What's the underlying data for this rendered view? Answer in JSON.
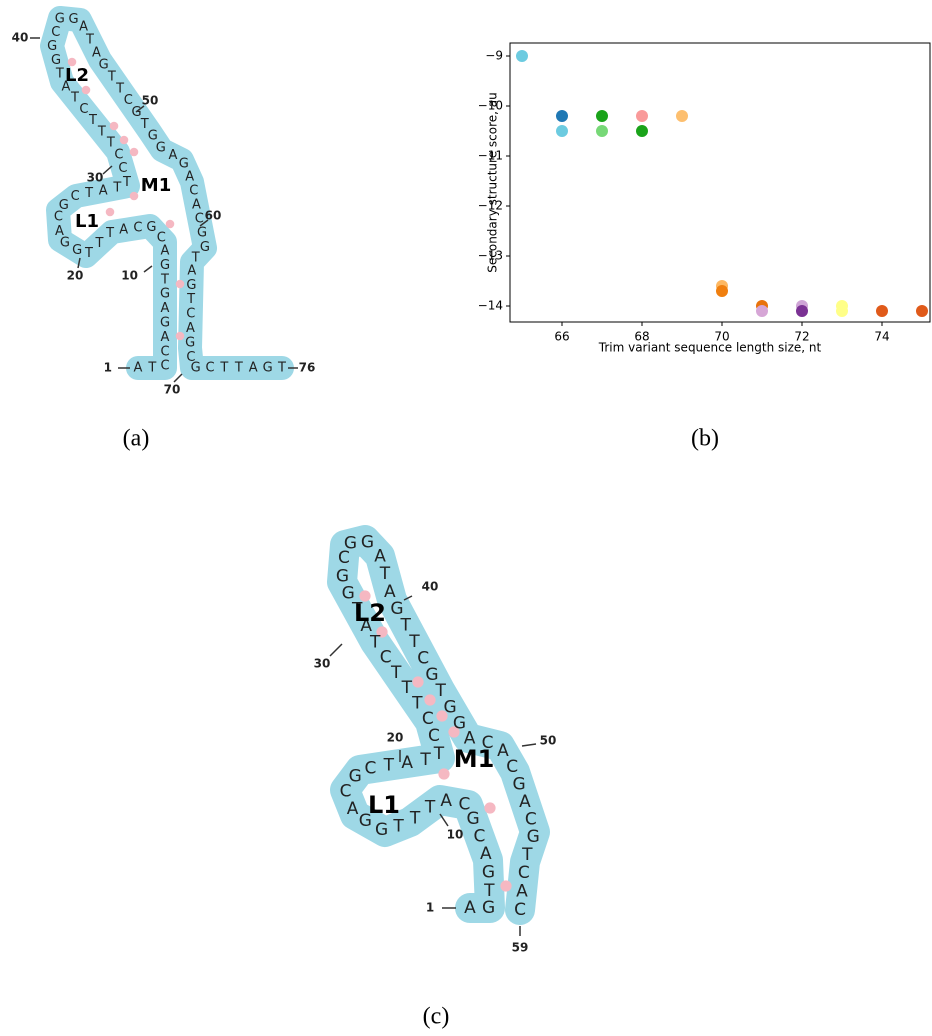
{
  "chart_data": {
    "type": "scatter",
    "x": [
      65,
      66,
      66,
      67,
      67,
      68,
      68,
      69,
      70,
      70,
      71,
      71,
      72,
      72,
      73,
      73,
      74,
      75
    ],
    "values": [
      -9,
      -10.2,
      -10.5,
      -10.2,
      -10.5,
      -10.2,
      -10.5,
      -10.2,
      -13.6,
      -13.7,
      -14,
      -14.1,
      -14,
      -14.1,
      -14,
      -14.1,
      -14.1,
      -14.1
    ],
    "colors": [
      "#6ccbe0",
      "#1f78b4",
      "#6ccbe0",
      "#1aa31a",
      "#77d877",
      "#f99a9a",
      "#1aa31a",
      "#fdbf6f",
      "#fdb863",
      "#f07f0f",
      "#e8730c",
      "#d6a6d6",
      "#cfa5d6",
      "#7b3294",
      "#ffff88",
      "#ffff88",
      "#e05a1a",
      "#e05a1a"
    ],
    "xlabel": "Trim variant sequence length size, nt",
    "ylabel": "Secondary structure score, au",
    "xlim": [
      64.7,
      75.2
    ],
    "ylim": [
      -14.32,
      -8.74
    ],
    "xticks": [
      66,
      68,
      70,
      72,
      74
    ],
    "yticks": [
      {
        "value": -14,
        "label": "−14"
      },
      {
        "value": -13,
        "label": "−13"
      },
      {
        "value": -12,
        "label": "−12"
      },
      {
        "value": -11,
        "label": "−11"
      },
      {
        "value": -10,
        "label": "−10"
      },
      {
        "value": -9,
        "label": "−9"
      }
    ]
  },
  "diagrams": [
    {
      "sequence": "ATCCAGAGTGACGCATTTGGACGCTATTCCTTTCTATGGCGGATAGTTCGTGGAGACACGGTAGTCAGCGCTTAGT",
      "position_labels": [
        "1",
        "10",
        "20",
        "30",
        "40",
        "50",
        "60",
        "70",
        "76"
      ],
      "loop_labels": [
        "L1",
        "L2",
        "M1"
      ]
    },
    {
      "sequence": "AGTGACGCATTTGGACGCTATTCCTTTCTATGGCGGATAGTTCGTGGACACGACGTCAC",
      "position_labels": [
        "1",
        "10",
        "20",
        "30",
        "40",
        "50",
        "59"
      ],
      "loop_labels": [
        "L1",
        "L2",
        "M1"
      ]
    }
  ],
  "captions": [
    "(a)",
    "(b)",
    "(c)"
  ]
}
